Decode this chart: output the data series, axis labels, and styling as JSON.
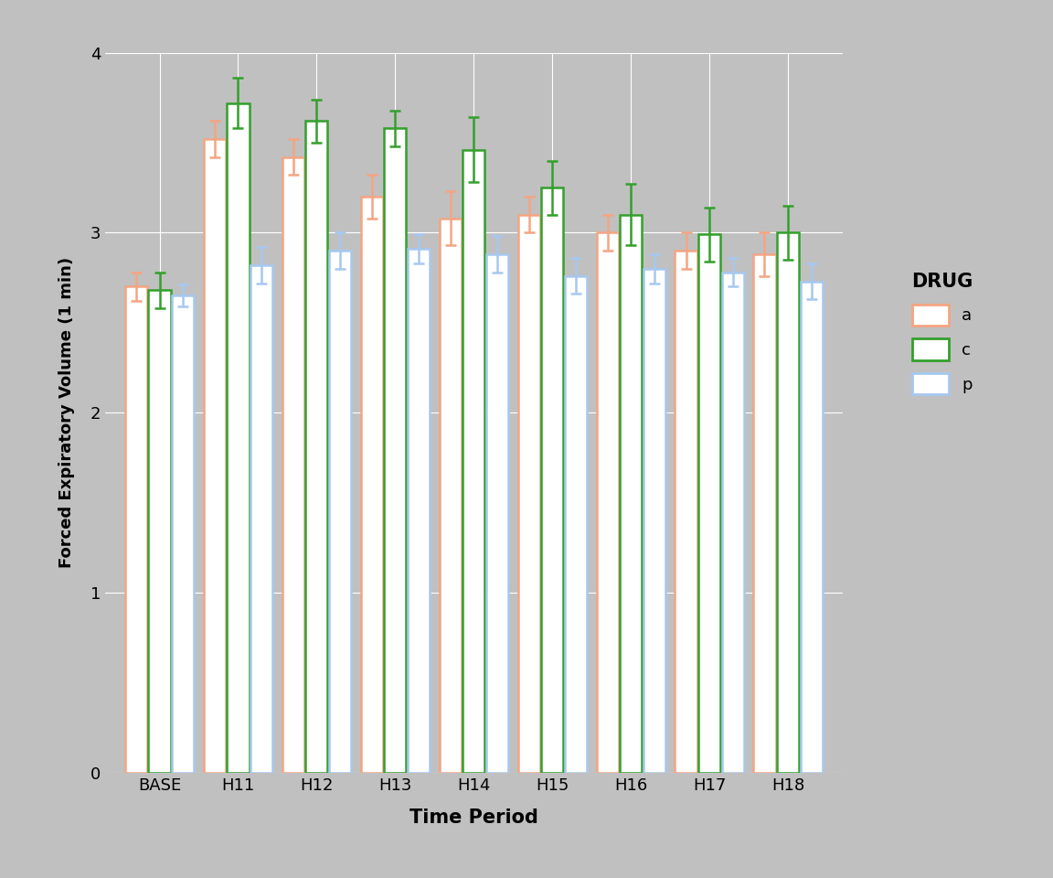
{
  "categories": [
    "BASE",
    "H11",
    "H12",
    "H13",
    "H14",
    "H15",
    "H16",
    "H17",
    "H18"
  ],
  "drugs": [
    "a",
    "c",
    "p"
  ],
  "edge_colors": {
    "a": "#F4A582",
    "c": "#33A02C",
    "p": "#A6C8F0"
  },
  "means": {
    "a": [
      2.7,
      3.52,
      3.42,
      3.2,
      3.08,
      3.1,
      3.0,
      2.9,
      2.88
    ],
    "c": [
      2.68,
      3.72,
      3.62,
      3.58,
      3.46,
      3.25,
      3.1,
      2.99,
      3.0
    ],
    "p": [
      2.65,
      2.82,
      2.9,
      2.91,
      2.88,
      2.76,
      2.8,
      2.78,
      2.73
    ]
  },
  "errors": {
    "a": [
      0.08,
      0.1,
      0.1,
      0.12,
      0.15,
      0.1,
      0.1,
      0.1,
      0.12
    ],
    "c": [
      0.1,
      0.14,
      0.12,
      0.1,
      0.18,
      0.15,
      0.17,
      0.15,
      0.15
    ],
    "p": [
      0.06,
      0.1,
      0.1,
      0.08,
      0.1,
      0.1,
      0.08,
      0.08,
      0.1
    ]
  },
  "xlabel": "Time Period",
  "ylabel": "Forced Expiratory Volume (1 min)",
  "ylim": [
    0,
    4.0
  ],
  "yticks": [
    0,
    1,
    2,
    3,
    4
  ],
  "legend_title": "DRUG",
  "background_color": "#C0C0C0",
  "plot_background": "#C0C0C0",
  "grid_color": "#FFFFFF",
  "bar_width": 0.28,
  "bar_spacing": 0.02
}
